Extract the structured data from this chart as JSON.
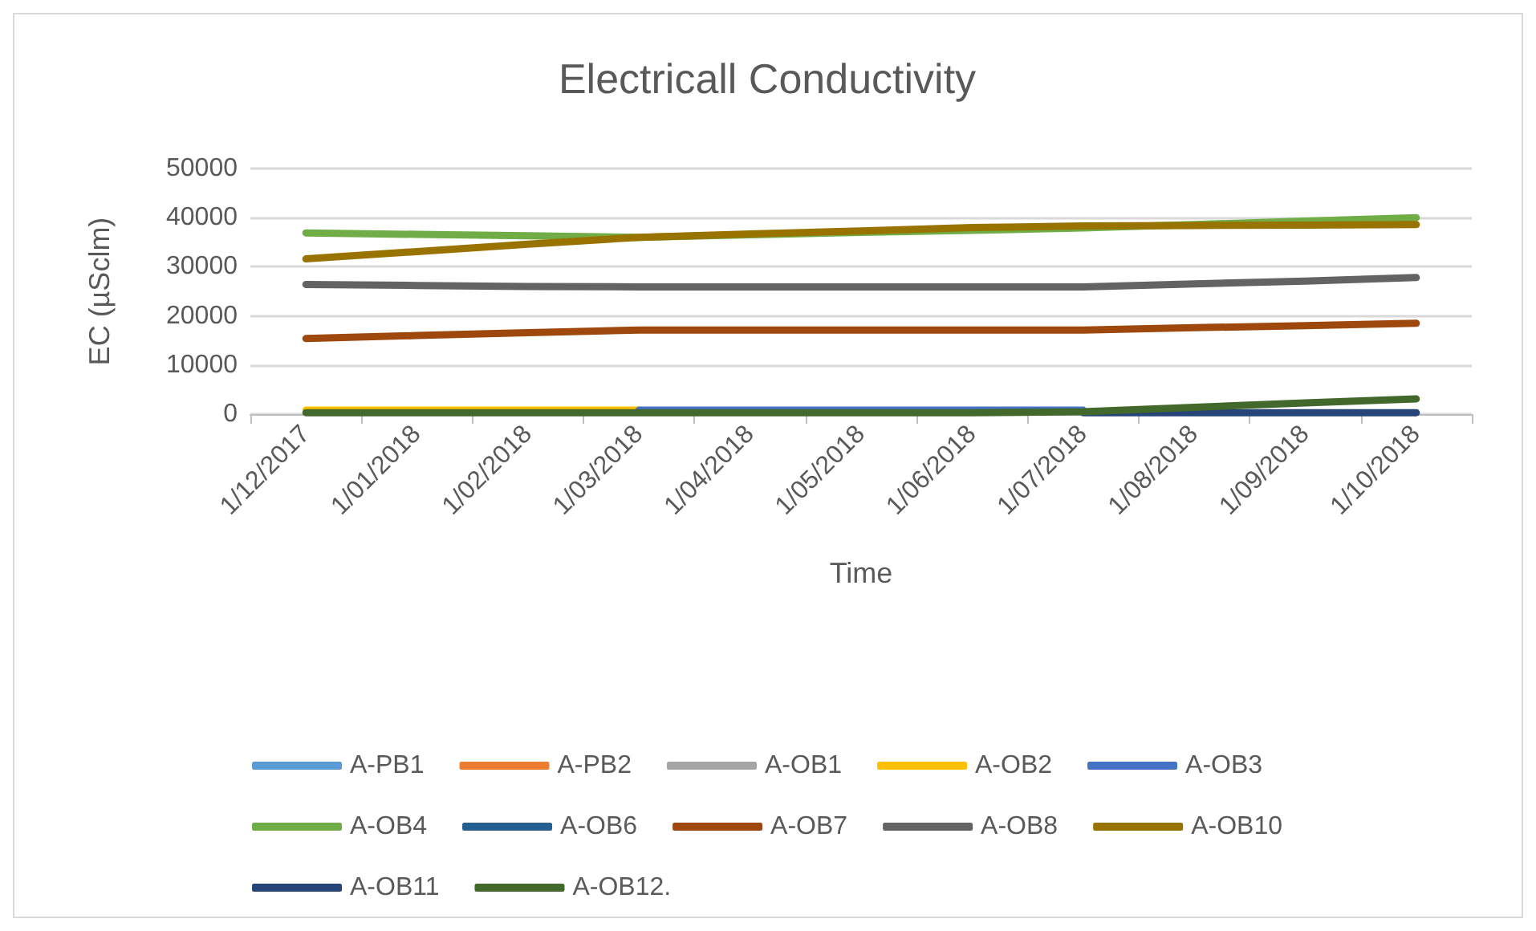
{
  "chart_data": {
    "type": "line",
    "title": "Electricall Conductivity",
    "xlabel": "Time",
    "ylabel": "EC (µSclm)",
    "categories": [
      "1/12/2017",
      "1/01/2018",
      "1/02/2018",
      "1/03/2018",
      "1/04/2018",
      "1/05/2018",
      "1/06/2018",
      "1/07/2018",
      "1/08/2018",
      "1/09/2018",
      "1/10/2018"
    ],
    "ylim": [
      0,
      50000
    ],
    "yticks": [
      0,
      10000,
      20000,
      30000,
      40000,
      50000
    ],
    "grid": "y",
    "legend": "bottom",
    "marker": "none",
    "line_style": "solid",
    "series": [
      {
        "name": "A-PB1",
        "color": "#5b9bd5",
        "values": [
          null,
          null,
          null,
          null,
          null,
          null,
          null,
          null,
          null,
          null,
          null
        ]
      },
      {
        "name": "A-PB2",
        "color": "#ed7d31",
        "values": [
          null,
          null,
          null,
          null,
          null,
          null,
          null,
          null,
          null,
          null,
          null
        ]
      },
      {
        "name": "A-OB1",
        "color": "#a5a5a5",
        "values": [
          null,
          null,
          null,
          null,
          null,
          null,
          null,
          null,
          null,
          null,
          null
        ]
      },
      {
        "name": "A-OB2",
        "color": "#ffc000",
        "values": [
          800,
          800,
          800,
          800,
          null,
          null,
          null,
          null,
          null,
          null,
          null
        ]
      },
      {
        "name": "A-OB3",
        "color": "#4472c4",
        "values": [
          null,
          null,
          null,
          800,
          800,
          800,
          800,
          800,
          null,
          null,
          null
        ]
      },
      {
        "name": "A-OB4",
        "color": "#70ad47",
        "values": [
          36900,
          36600,
          36300,
          36000,
          36500,
          37000,
          37400,
          37900,
          38600,
          39300,
          40000
        ]
      },
      {
        "name": "A-OB6",
        "color": "#255e91",
        "values": [
          null,
          null,
          null,
          null,
          null,
          null,
          null,
          null,
          null,
          null,
          null
        ]
      },
      {
        "name": "A-OB7",
        "color": "#9e480e",
        "values": [
          15400,
          16000,
          16600,
          17100,
          17100,
          17100,
          17100,
          17100,
          17600,
          18000,
          18500
        ]
      },
      {
        "name": "A-OB8",
        "color": "#636363",
        "values": [
          26400,
          26200,
          26000,
          25900,
          25900,
          25900,
          25900,
          25900,
          26500,
          27100,
          27800
        ]
      },
      {
        "name": "A-OB10",
        "color": "#997300",
        "values": [
          31600,
          33100,
          34600,
          36000,
          36700,
          37300,
          38000,
          38300,
          38400,
          38500,
          38600
        ]
      },
      {
        "name": "A-OB11",
        "color": "#264478",
        "values": [
          null,
          null,
          null,
          null,
          null,
          null,
          null,
          300,
          300,
          300,
          300
        ]
      },
      {
        "name": "A-OB12.",
        "color": "#43682b",
        "values": [
          300,
          300,
          300,
          300,
          300,
          300,
          300,
          500,
          1400,
          2300,
          3100
        ]
      }
    ]
  }
}
